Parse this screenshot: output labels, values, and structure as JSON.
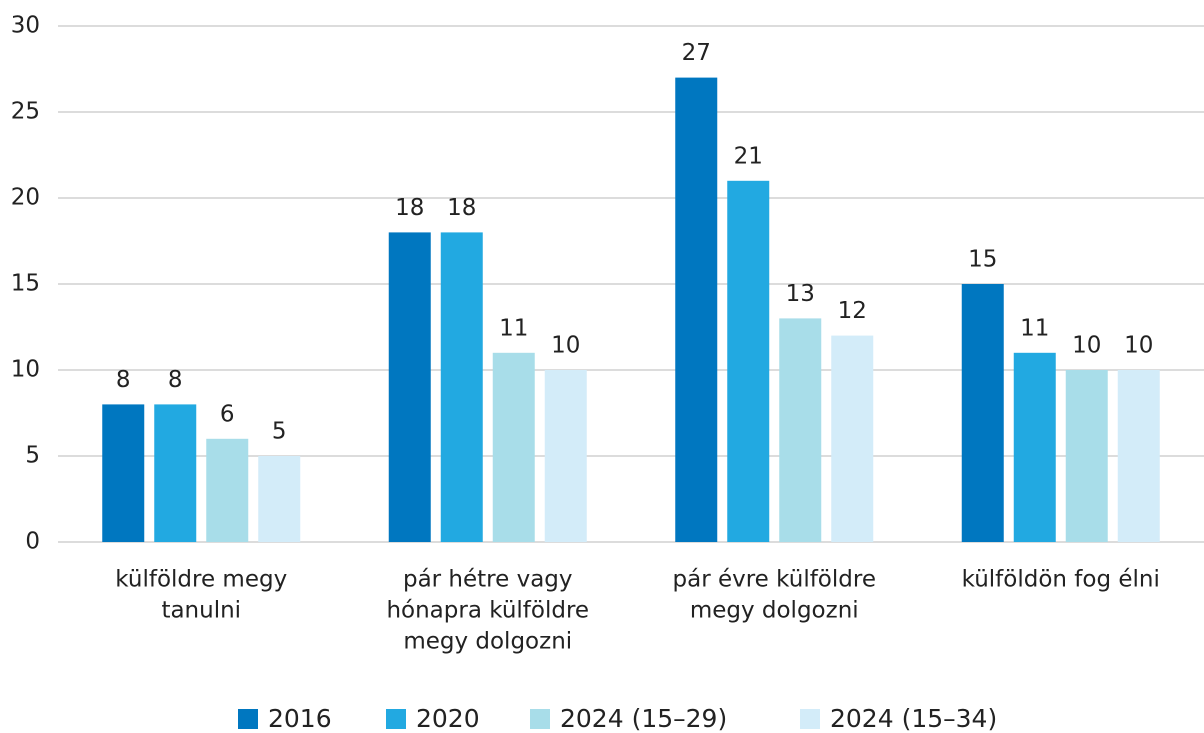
{
  "chart_data": {
    "type": "bar",
    "categories": [
      [
        "külföldre megy",
        "tanulni"
      ],
      [
        "pár hétre vagy",
        "hónapra külföldre",
        "megy dolgozni"
      ],
      [
        "pár évre külföldre",
        "megy dolgozni"
      ],
      [
        "külföldön fog élni"
      ]
    ],
    "series": [
      {
        "name": "2016",
        "color": "#0077c0",
        "values": [
          8,
          18,
          27,
          15
        ]
      },
      {
        "name": "2020",
        "color": "#22a9e1",
        "values": [
          8,
          18,
          21,
          11
        ]
      },
      {
        "name": "2024 (15–29)",
        "color": "#a8dde9",
        "values": [
          6,
          11,
          13,
          10
        ]
      },
      {
        "name": "2024 (15–34)",
        "color": "#d3ecf9",
        "values": [
          5,
          10,
          12,
          10
        ]
      }
    ],
    "ylim": [
      0,
      30
    ],
    "yticks": [
      0,
      5,
      10,
      15,
      20,
      25,
      30
    ],
    "grid": true,
    "legend": "bottom"
  }
}
